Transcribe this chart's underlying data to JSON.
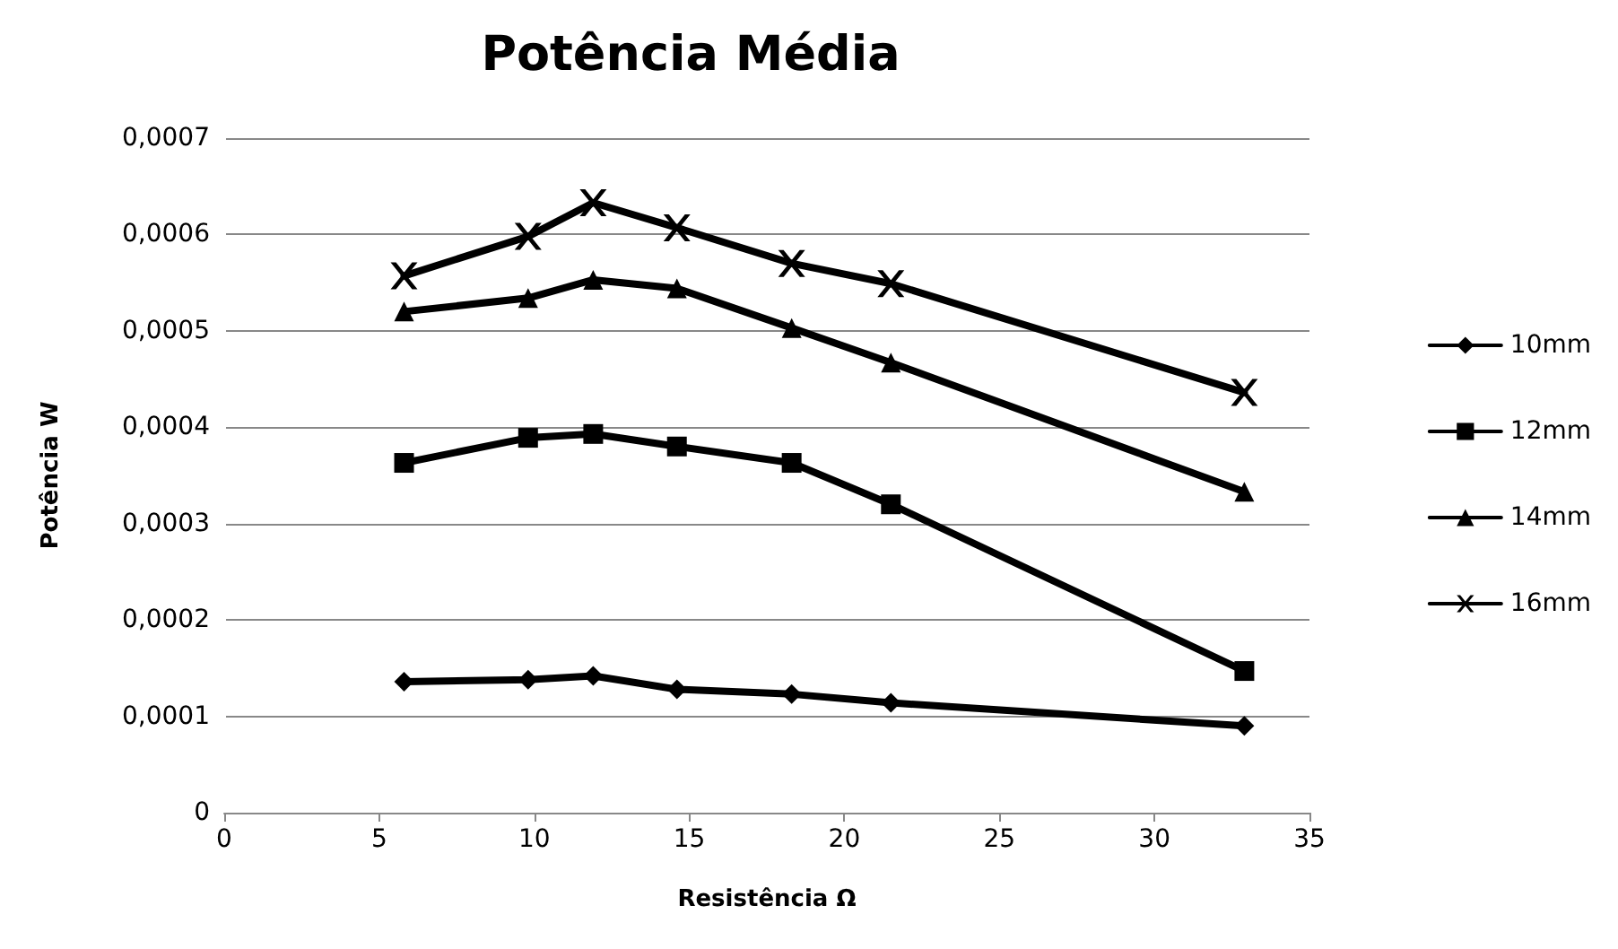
{
  "chart_data": {
    "type": "line",
    "title": "Potência Média",
    "xlabel": "Resistência Ω",
    "ylabel": "Potência W",
    "x": [
      5.8,
      9.8,
      11.9,
      14.6,
      18.3,
      21.5,
      32.9
    ],
    "series": [
      {
        "name": "10mm",
        "color": "#000000",
        "marker": "diamond",
        "values": [
          0.000136,
          0.000138,
          0.000142,
          0.000128,
          0.000123,
          0.000114,
          9e-05
        ]
      },
      {
        "name": "12mm",
        "color": "#000000",
        "marker": "square",
        "values": [
          0.000363,
          0.000389,
          0.000393,
          0.00038,
          0.000363,
          0.00032,
          0.000147
        ]
      },
      {
        "name": "14mm",
        "color": "#000000",
        "marker": "triangle",
        "values": [
          0.00052,
          0.000534,
          0.000553,
          0.000544,
          0.000503,
          0.000467,
          0.000333
        ]
      },
      {
        "name": "16mm",
        "color": "#000000",
        "marker": "cross",
        "values": [
          0.000557,
          0.000598,
          0.000633,
          0.000607,
          0.00057,
          0.000549,
          0.000436
        ]
      }
    ],
    "xlim": [
      0,
      35
    ],
    "xticks": [
      0,
      5,
      10,
      15,
      20,
      25,
      30,
      35
    ],
    "ylim": [
      0,
      0.0007
    ],
    "yticks": [
      {
        "value": 0,
        "label": "0"
      },
      {
        "value": 0.0001,
        "label": "0,0001"
      },
      {
        "value": 0.0002,
        "label": "0,0002"
      },
      {
        "value": 0.0003,
        "label": "0,0003"
      },
      {
        "value": 0.0004,
        "label": "0,0004"
      },
      {
        "value": 0.0005,
        "label": "0,0005"
      },
      {
        "value": 0.0006,
        "label": "0,0006"
      },
      {
        "value": 0.0007,
        "label": "0,0007"
      }
    ],
    "grid": "y",
    "legend": "right",
    "line_style": "solid"
  }
}
